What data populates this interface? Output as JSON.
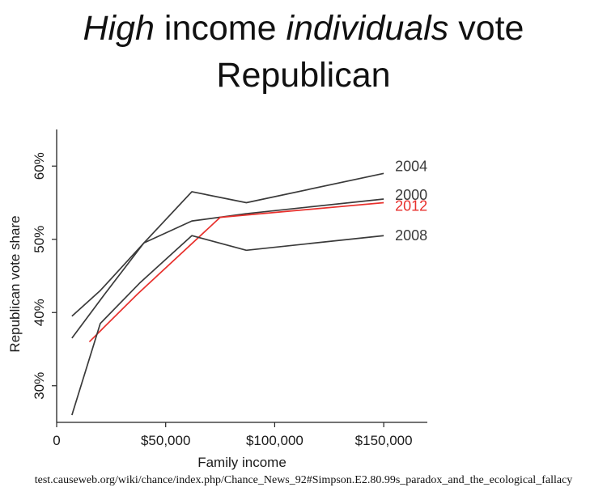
{
  "title": {
    "parts": [
      {
        "text": "High",
        "italic": true
      },
      {
        "text": " income ",
        "italic": false
      },
      {
        "text": "individuals",
        "italic": true
      },
      {
        "text": " vote",
        "italic": false
      },
      {
        "text": "\n",
        "italic": false
      },
      {
        "text": "Republican",
        "italic": false
      }
    ]
  },
  "source": "test.causeweb.org/wiki/chance/index.php/Chance_News_92#Simpson.E2.80.99s_paradox_and_the_ecological_fallacy",
  "chart_data": {
    "type": "line",
    "xlabel": "Family income",
    "ylabel": "Republican vote share",
    "xlim": [
      0,
      170000
    ],
    "ylim": [
      25,
      65
    ],
    "x_ticks": [
      {
        "value": 0,
        "label": "0"
      },
      {
        "value": 50000,
        "label": "$50,000"
      },
      {
        "value": 100000,
        "label": "$100,000"
      },
      {
        "value": 150000,
        "label": "$150,000"
      }
    ],
    "y_ticks": [
      {
        "value": 30,
        "label": "30%"
      },
      {
        "value": 40,
        "label": "40%"
      },
      {
        "value": 50,
        "label": "50%"
      },
      {
        "value": 60,
        "label": "60%"
      }
    ],
    "grid": false,
    "legend": "direct labels at right end of lines",
    "series": [
      {
        "name": "2004",
        "color": "#3a3a3a",
        "x": [
          7000,
          20000,
          40000,
          62000,
          87000,
          150000
        ],
        "y": [
          39.5,
          43,
          49.5,
          56.5,
          55,
          59
        ]
      },
      {
        "name": "2000",
        "color": "#3a3a3a",
        "x": [
          7000,
          22000,
          40000,
          62000,
          87000,
          150000
        ],
        "y": [
          36.5,
          42.5,
          49.5,
          52.5,
          53.5,
          55.5
        ]
      },
      {
        "name": "2012",
        "color": "#e8302c",
        "x": [
          15000,
          37000,
          75000,
          150000
        ],
        "y": [
          36,
          42.5,
          53,
          55
        ]
      },
      {
        "name": "2008",
        "color": "#3a3a3a",
        "x": [
          7000,
          20000,
          38000,
          62000,
          87000,
          150000
        ],
        "y": [
          26,
          38.5,
          44,
          50.5,
          48.5,
          50.5
        ]
      }
    ]
  }
}
